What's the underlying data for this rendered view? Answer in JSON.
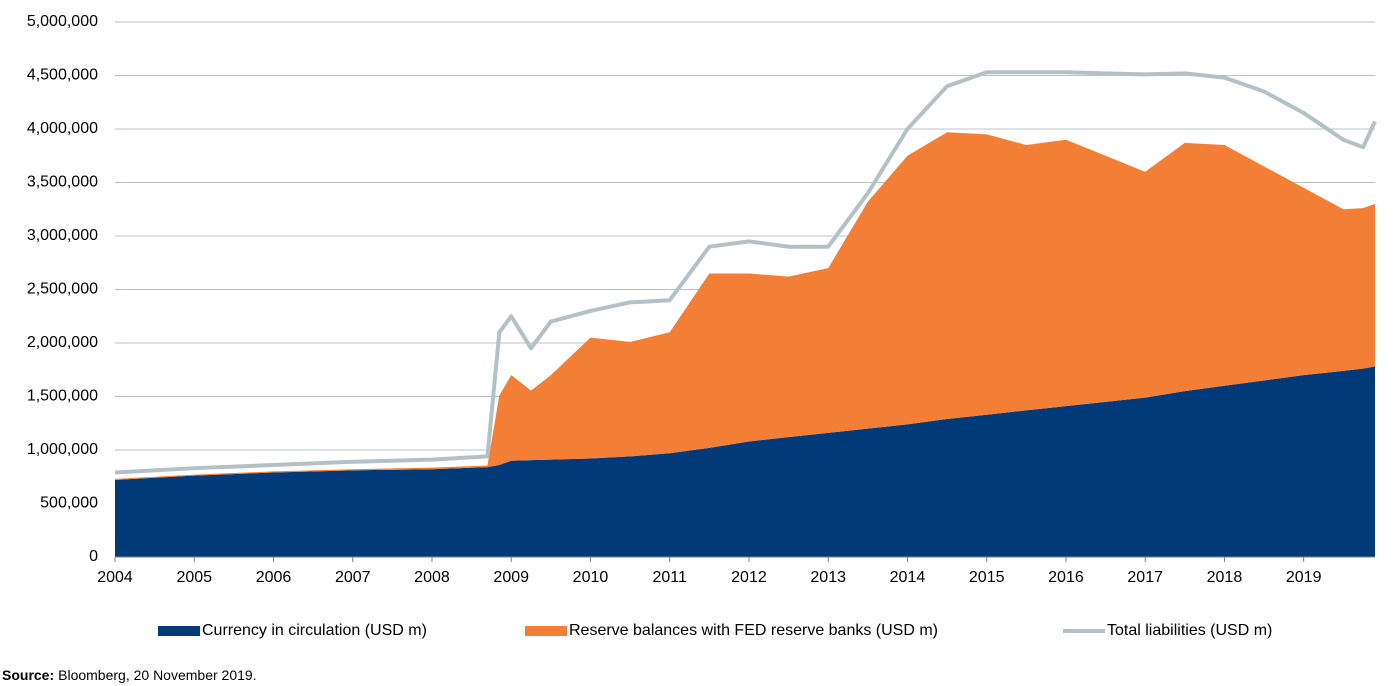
{
  "chart_data": {
    "type": "stacked_area_line",
    "x": [
      2004,
      2005,
      2006,
      2007,
      2008,
      2008.7,
      2008.85,
      2009,
      2009.25,
      2009.5,
      2010,
      2010.5,
      2011,
      2011.5,
      2012,
      2012.5,
      2013,
      2013.5,
      2014,
      2014.5,
      2015,
      2015.5,
      2016,
      2016.5,
      2017,
      2017.5,
      2018,
      2018.5,
      2019,
      2019.5,
      2019.75,
      2019.9
    ],
    "series": [
      {
        "name": "Currency in circulation (USD m)",
        "color": "#003a78",
        "kind": "area",
        "values": [
          720000,
          760000,
          790000,
          810000,
          820000,
          840000,
          860000,
          900000,
          905000,
          910000,
          920000,
          940000,
          970000,
          1020000,
          1080000,
          1120000,
          1160000,
          1200000,
          1240000,
          1290000,
          1330000,
          1370000,
          1410000,
          1450000,
          1490000,
          1550000,
          1600000,
          1650000,
          1700000,
          1740000,
          1760000,
          1780000
        ]
      },
      {
        "name": "Reserve balances with FED reserve banks (USD m)",
        "color": "#f37e35",
        "kind": "area",
        "values": [
          10000,
          10000,
          10000,
          10000,
          15000,
          15000,
          650000,
          800000,
          650000,
          790000,
          1130000,
          1070000,
          1130000,
          1630000,
          1570000,
          1500000,
          1540000,
          2120000,
          2510000,
          2680000,
          2620000,
          2480000,
          2490000,
          2300000,
          2110000,
          2320000,
          2250000,
          2000000,
          1750000,
          1510000,
          1500000,
          1520000
        ]
      },
      {
        "name": "Total liabilities (USD m)",
        "color": "#b3c1c6",
        "kind": "line",
        "values": [
          790000,
          830000,
          860000,
          890000,
          910000,
          940000,
          2100000,
          2250000,
          1950000,
          2200000,
          2300000,
          2380000,
          2400000,
          2900000,
          2950000,
          2900000,
          2900000,
          3400000,
          4000000,
          4400000,
          4530000,
          4530000,
          4530000,
          4520000,
          4510000,
          4520000,
          4480000,
          4350000,
          4150000,
          3900000,
          3830000,
          4070000
        ]
      }
    ],
    "xlim": [
      2004,
      2019.9
    ],
    "xticks": [
      2004,
      2005,
      2006,
      2007,
      2008,
      2009,
      2010,
      2011,
      2012,
      2013,
      2014,
      2015,
      2016,
      2017,
      2018,
      2019
    ],
    "ylim": [
      0,
      5000000
    ],
    "yticks": [
      0,
      {
        "value": 500000,
        "label": "500,000"
      },
      {
        "value": 1000000,
        "label": "1,000,000"
      },
      {
        "value": 1500000,
        "label": "1,500,000"
      },
      {
        "value": 2000000,
        "label": "2,000,000"
      },
      {
        "value": 2500000,
        "label": "2,500,000"
      },
      {
        "value": 3000000,
        "label": "3,000,000"
      },
      {
        "value": 3500000,
        "label": "3,500,000"
      },
      {
        "value": 4000000,
        "label": "4,000,000"
      },
      {
        "value": 4500000,
        "label": "4,500,000"
      },
      {
        "value": 5000000,
        "label": "5,000,000"
      }
    ],
    "grid": true,
    "legend": "bottom",
    "source": {
      "label": "Source:",
      "text": "Bloomberg, 20 November 2019."
    }
  }
}
